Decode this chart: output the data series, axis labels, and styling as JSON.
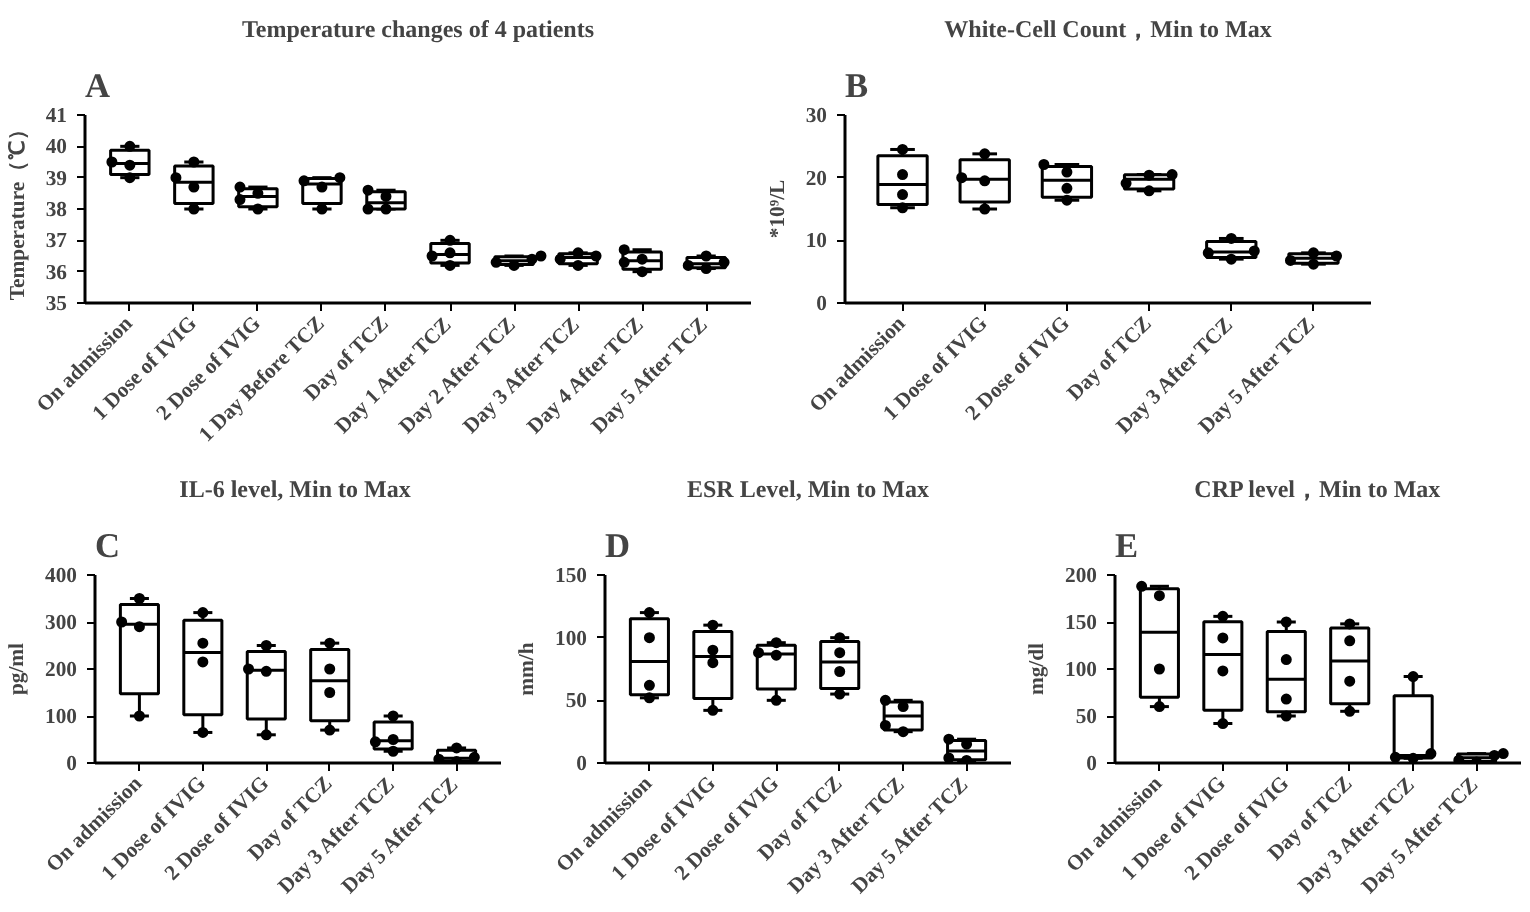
{
  "chart_data": [
    {
      "type": "box",
      "title": "Temperature changes of 4 patients",
      "ylabel": "Temperature（℃）",
      "annotations": [
        "A"
      ],
      "grid": false,
      "categories": [
        "On admission",
        "1 Dose of IVIG",
        "2 Dose of IVIG",
        "1 Day Before TCZ",
        "Day of TCZ",
        "Day 1 After TCZ",
        "Day 2 After TCZ",
        "Day 3 After TCZ",
        "Day 4 After TCZ",
        "Day 5 After TCZ"
      ],
      "ylim": [
        35,
        41
      ],
      "yticks": [
        35,
        36,
        37,
        38,
        39,
        40,
        41
      ],
      "boxes": [
        {
          "low": 39.0,
          "q1": 39.1,
          "median": 39.45,
          "q3": 39.875,
          "high": 40.0
        },
        {
          "low": 38.0,
          "q1": 38.175,
          "median": 38.85,
          "q3": 39.375,
          "high": 39.5
        },
        {
          "low": 38.0,
          "q1": 38.075,
          "median": 38.4,
          "q3": 38.65,
          "high": 38.7
        },
        {
          "low": 38.0,
          "q1": 38.175,
          "median": 38.8,
          "q3": 38.975,
          "high": 39.0
        },
        {
          "low": 38.0,
          "q1": 38.0,
          "median": 38.2,
          "q3": 38.55,
          "high": 38.6
        },
        {
          "low": 36.2,
          "q1": 36.275,
          "median": 36.55,
          "q3": 36.9,
          "high": 37.0
        },
        {
          "low": 36.2,
          "q1": 36.225,
          "median": 36.35,
          "q3": 36.475,
          "high": 36.5
        },
        {
          "low": 36.2,
          "q1": 36.25,
          "median": 36.45,
          "q3": 36.575,
          "high": 36.6
        },
        {
          "low": 36.0,
          "q1": 36.075,
          "median": 36.35,
          "q3": 36.625,
          "high": 36.7
        },
        {
          "low": 36.1,
          "q1": 36.125,
          "median": 36.25,
          "q3": 36.45,
          "high": 36.5
        }
      ],
      "series": [
        {
          "type": "scatter",
          "marker": "circle",
          "color": "#000000",
          "x": [
            "On admission",
            "On admission",
            "On admission",
            "On admission",
            "1 Dose of IVIG",
            "1 Dose of IVIG",
            "1 Dose of IVIG",
            "1 Dose of IVIG",
            "2 Dose of IVIG",
            "2 Dose of IVIG",
            "2 Dose of IVIG",
            "2 Dose of IVIG",
            "1 Day Before TCZ",
            "1 Day Before TCZ",
            "1 Day Before TCZ",
            "1 Day Before TCZ",
            "Day of TCZ",
            "Day of TCZ",
            "Day of TCZ",
            "Day of TCZ",
            "Day 1 After TCZ",
            "Day 1 After TCZ",
            "Day 1 After TCZ",
            "Day 1 After TCZ",
            "Day 2 After TCZ",
            "Day 2 After TCZ",
            "Day 2 After TCZ",
            "Day 2 After TCZ",
            "Day 3 After TCZ",
            "Day 3 After TCZ",
            "Day 3 After TCZ",
            "Day 3 After TCZ",
            "Day 4 After TCZ",
            "Day 4 After TCZ",
            "Day 4 After TCZ",
            "Day 4 After TCZ",
            "Day 5 After TCZ",
            "Day 5 After TCZ",
            "Day 5 After TCZ",
            "Day 5 After TCZ"
          ],
          "values": [
            39.0,
            39.4,
            39.5,
            40.0,
            38.0,
            38.7,
            39.0,
            39.5,
            38.0,
            38.3,
            38.5,
            38.7,
            38.0,
            38.7,
            38.9,
            39.0,
            38.0,
            38.0,
            38.4,
            38.6,
            36.2,
            36.5,
            36.6,
            37.0,
            36.2,
            36.3,
            36.4,
            36.5,
            36.2,
            36.4,
            36.5,
            36.6,
            36.0,
            36.3,
            36.4,
            36.7,
            36.1,
            36.2,
            36.3,
            36.5
          ]
        }
      ]
    },
    {
      "type": "box",
      "title": "White-Cell Count，Min to Max",
      "ylabel": "*10⁹/L",
      "annotations": [
        "B"
      ],
      "grid": false,
      "categories": [
        "On admission",
        "1 Dose of IVIG",
        "2 Dose of IVIG",
        "Day of TCZ",
        "Day 3 After TCZ",
        "Day 5 After TCZ"
      ],
      "ylim": [
        0,
        30
      ],
      "yticks": [
        0,
        10,
        20,
        30
      ],
      "boxes": [
        {
          "low": 15.2,
          "q1": 15.725,
          "median": 18.9,
          "q3": 23.5,
          "high": 24.5
        },
        {
          "low": 15.0,
          "q1": 16.125,
          "median": 19.75,
          "q3": 22.85,
          "high": 23.8
        },
        {
          "low": 16.4,
          "q1": 16.875,
          "median": 19.6,
          "q3": 21.8,
          "high": 22.1
        },
        {
          "low": 17.9,
          "q1": 18.2,
          "median": 19.75,
          "q3": 20.475,
          "high": 20.5
        },
        {
          "low": 7.0,
          "q1": 7.25,
          "median": 8.15,
          "q3": 9.8,
          "high": 10.3
        },
        {
          "low": 6.2,
          "q1": 6.35,
          "median": 7.15,
          "q3": 7.875,
          "high": 8.0
        }
      ],
      "series": [
        {
          "type": "scatter",
          "marker": "circle",
          "color": "#000000",
          "x": [
            "On admission",
            "On admission",
            "On admission",
            "On admission",
            "1 Dose of IVIG",
            "1 Dose of IVIG",
            "1 Dose of IVIG",
            "1 Dose of IVIG",
            "2 Dose of IVIG",
            "2 Dose of IVIG",
            "2 Dose of IVIG",
            "2 Dose of IVIG",
            "Day of TCZ",
            "Day of TCZ",
            "Day of TCZ",
            "Day of TCZ",
            "Day 3 After TCZ",
            "Day 3 After TCZ",
            "Day 3 After TCZ",
            "Day 3 After TCZ",
            "Day 5 After TCZ",
            "Day 5 After TCZ",
            "Day 5 After TCZ",
            "Day 5 After TCZ"
          ],
          "values": [
            15.2,
            17.3,
            20.5,
            24.5,
            15.0,
            19.5,
            20.0,
            23.8,
            16.4,
            18.3,
            20.9,
            22.1,
            17.9,
            19.1,
            20.4,
            20.5,
            7.0,
            8.0,
            8.3,
            10.3,
            6.2,
            6.8,
            7.5,
            8.0
          ]
        }
      ]
    },
    {
      "type": "box",
      "title": "IL-6 level, Min to  Max",
      "ylabel": "pg/ml",
      "annotations": [
        "C"
      ],
      "grid": false,
      "categories": [
        "On admission",
        "1 Dose of IVIG",
        "2 Dose of IVIG",
        "Day of TCZ",
        "Day 3 After TCZ",
        "Day 5 After TCZ"
      ],
      "ylim": [
        0,
        400
      ],
      "yticks": [
        0,
        100,
        200,
        300,
        400
      ],
      "boxes": [
        {
          "low": 100,
          "q1": 147.5,
          "median": 295,
          "q3": 337.5,
          "high": 350
        },
        {
          "low": 65,
          "q1": 102.5,
          "median": 235,
          "q3": 303.75,
          "high": 320
        },
        {
          "low": 60,
          "q1": 93.75,
          "median": 197.5,
          "q3": 237.5,
          "high": 250
        },
        {
          "low": 70,
          "q1": 90,
          "median": 175,
          "q3": 241.25,
          "high": 255
        },
        {
          "low": 25,
          "q1": 30,
          "median": 47.5,
          "q3": 87.5,
          "high": 100
        },
        {
          "low": 3,
          "q1": 4.25,
          "median": 10,
          "q3": 27,
          "high": 32
        }
      ],
      "series": [
        {
          "type": "scatter",
          "marker": "circle",
          "color": "#000000",
          "x": [
            "On admission",
            "On admission",
            "On admission",
            "On admission",
            "1 Dose of IVIG",
            "1 Dose of IVIG",
            "1 Dose of IVIG",
            "1 Dose of IVIG",
            "2 Dose of IVIG",
            "2 Dose of IVIG",
            "2 Dose of IVIG",
            "2 Dose of IVIG",
            "Day of TCZ",
            "Day of TCZ",
            "Day of TCZ",
            "Day of TCZ",
            "Day 3 After TCZ",
            "Day 3 After TCZ",
            "Day 3 After TCZ",
            "Day 3 After TCZ",
            "Day 5 After TCZ",
            "Day 5 After TCZ",
            "Day 5 After TCZ",
            "Day 5 After TCZ"
          ],
          "values": [
            100,
            290,
            300,
            350,
            65,
            215,
            255,
            320,
            60,
            195,
            200,
            250,
            70,
            150,
            200,
            255,
            25,
            45,
            50,
            100,
            3,
            8,
            12,
            32
          ]
        }
      ]
    },
    {
      "type": "box",
      "title": "ESR Level, Min to Max",
      "ylabel": "mm/h",
      "annotations": [
        "D"
      ],
      "grid": false,
      "categories": [
        "On admission",
        "1 Dose of IVIG",
        "2 Dose of IVIG",
        "Day of TCZ",
        "Day 3 After TCZ",
        "Day 5 After TCZ"
      ],
      "ylim": [
        0,
        150
      ],
      "yticks": [
        0,
        50,
        100,
        150
      ],
      "boxes": [
        {
          "low": 52,
          "q1": 54.5,
          "median": 81,
          "q3": 115,
          "high": 120
        },
        {
          "low": 42,
          "q1": 51.5,
          "median": 85,
          "q3": 105,
          "high": 110
        },
        {
          "low": 50,
          "q1": 59,
          "median": 87,
          "q3": 94,
          "high": 96
        },
        {
          "low": 55,
          "q1": 59.5,
          "median": 80.5,
          "q3": 97,
          "high": 100
        },
        {
          "low": 25,
          "q1": 26.25,
          "median": 37.5,
          "q3": 48.75,
          "high": 50
        },
        {
          "low": 2,
          "q1": 2.5,
          "median": 9.5,
          "q3": 18,
          "high": 19
        }
      ],
      "series": [
        {
          "type": "scatter",
          "marker": "circle",
          "color": "#000000",
          "x": [
            "On admission",
            "On admission",
            "On admission",
            "On admission",
            "1 Dose of IVIG",
            "1 Dose of IVIG",
            "1 Dose of IVIG",
            "1 Dose of IVIG",
            "2 Dose of IVIG",
            "2 Dose of IVIG",
            "2 Dose of IVIG",
            "2 Dose of IVIG",
            "Day of TCZ",
            "Day of TCZ",
            "Day of TCZ",
            "Day of TCZ",
            "Day 3 After TCZ",
            "Day 3 After TCZ",
            "Day 3 After TCZ",
            "Day 3 After TCZ",
            "Day 5 After TCZ",
            "Day 5 After TCZ",
            "Day 5 After TCZ",
            "Day 5 After TCZ"
          ],
          "values": [
            52,
            62,
            100,
            120,
            42,
            80,
            90,
            110,
            50,
            86,
            88,
            96,
            55,
            73,
            88,
            100,
            25,
            30,
            45,
            50,
            2,
            4,
            15,
            19
          ]
        }
      ]
    },
    {
      "type": "box",
      "title": "CRP level，Min to Max",
      "ylabel": "mg/dl",
      "annotations": [
        "E"
      ],
      "grid": false,
      "categories": [
        "On admission",
        "1 Dose of IVIG",
        "2 Dose of IVIG",
        "Day of TCZ",
        "Day 3 After TCZ",
        "Day 5 After TCZ"
      ],
      "ylim": [
        0,
        200
      ],
      "yticks": [
        0,
        50,
        100,
        150,
        200
      ],
      "boxes": [
        {
          "low": 60,
          "q1": 70,
          "median": 139,
          "q3": 185.5,
          "high": 188
        },
        {
          "low": 42,
          "q1": 56,
          "median": 115.5,
          "q3": 150.25,
          "high": 156
        },
        {
          "low": 50,
          "q1": 54.5,
          "median": 89,
          "q3": 140,
          "high": 150
        },
        {
          "low": 55,
          "q1": 63,
          "median": 108.5,
          "q3": 143.5,
          "high": 148
        },
        {
          "low": 5,
          "q1": 5.25,
          "median": 8,
          "q3": 71.5,
          "high": 92
        },
        {
          "low": 1,
          "q1": 1.5,
          "median": 5.5,
          "q3": 9.5,
          "high": 10
        }
      ],
      "series": [
        {
          "type": "scatter",
          "marker": "circle",
          "color": "#000000",
          "x": [
            "On admission",
            "On admission",
            "On admission",
            "On admission",
            "1 Dose of IVIG",
            "1 Dose of IVIG",
            "1 Dose of IVIG",
            "1 Dose of IVIG",
            "2 Dose of IVIG",
            "2 Dose of IVIG",
            "2 Dose of IVIG",
            "2 Dose of IVIG",
            "Day of TCZ",
            "Day of TCZ",
            "Day of TCZ",
            "Day of TCZ",
            "Day 3 After TCZ",
            "Day 3 After TCZ",
            "Day 3 After TCZ",
            "Day 3 After TCZ",
            "Day 5 After TCZ",
            "Day 5 After TCZ",
            "Day 5 After TCZ",
            "Day 5 After TCZ"
          ],
          "values": [
            60,
            100,
            178,
            188,
            42,
            98,
            133,
            156,
            50,
            68,
            110,
            150,
            55,
            87,
            130,
            148,
            5,
            6,
            10,
            92,
            1,
            3,
            8,
            10
          ]
        }
      ]
    }
  ]
}
